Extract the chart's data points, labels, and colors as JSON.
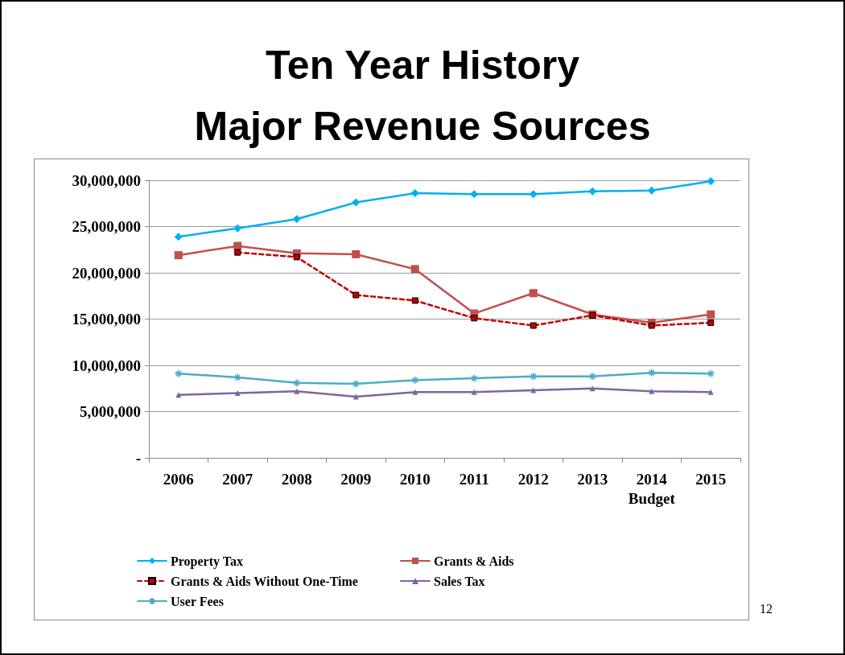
{
  "chart_data": {
    "type": "line",
    "title": "Ten Year History\nMajor Revenue Sources",
    "categories": [
      "2006",
      "2007",
      "2008",
      "2009",
      "2010",
      "2011",
      "2012",
      "2013",
      "2014\nBudget",
      "2015"
    ],
    "series": [
      {
        "name": "Property Tax",
        "color": "#00b0f0",
        "marker": "diamond",
        "values": [
          23900000,
          24800000,
          25800000,
          27600000,
          28600000,
          28500000,
          28500000,
          28800000,
          28900000,
          29900000
        ]
      },
      {
        "name": "Grants & Aids",
        "color": "#c0504d",
        "marker": "square",
        "values": [
          21900000,
          22900000,
          22100000,
          22000000,
          20400000,
          15600000,
          17800000,
          15500000,
          14600000,
          15500000
        ]
      },
      {
        "name": "Grants & Aids Without One-Time",
        "color": "#c00000",
        "marker": "square",
        "line_style": "dashed",
        "values": [
          null,
          22200000,
          21700000,
          17600000,
          17000000,
          15100000,
          14300000,
          15400000,
          14300000,
          14600000
        ]
      },
      {
        "name": "Sales Tax",
        "color": "#8064a2",
        "marker": "triangle",
        "values": [
          6800000,
          7000000,
          7200000,
          6600000,
          7100000,
          7100000,
          7300000,
          7500000,
          7200000,
          7100000
        ]
      },
      {
        "name": "User Fees",
        "color": "#4bacc6",
        "marker": "cross",
        "values": [
          9100000,
          8700000,
          8100000,
          8000000,
          8400000,
          8600000,
          8800000,
          8800000,
          9200000,
          9100000
        ]
      }
    ],
    "ylim": [
      0,
      30000000
    ],
    "yticks": [
      {
        "value": 0,
        "label": "-"
      },
      {
        "value": 5000000,
        "label": "5,000,000"
      },
      {
        "value": 10000000,
        "label": "10,000,000"
      },
      {
        "value": 15000000,
        "label": "15,000,000"
      },
      {
        "value": 20000000,
        "label": "20,000,000"
      },
      {
        "value": 25000000,
        "label": "25,000,000"
      },
      {
        "value": 30000000,
        "label": "30,000,000"
      }
    ],
    "grid": "y",
    "legend": "bottom",
    "line_style": "solid",
    "annotations": [
      "12"
    ]
  }
}
